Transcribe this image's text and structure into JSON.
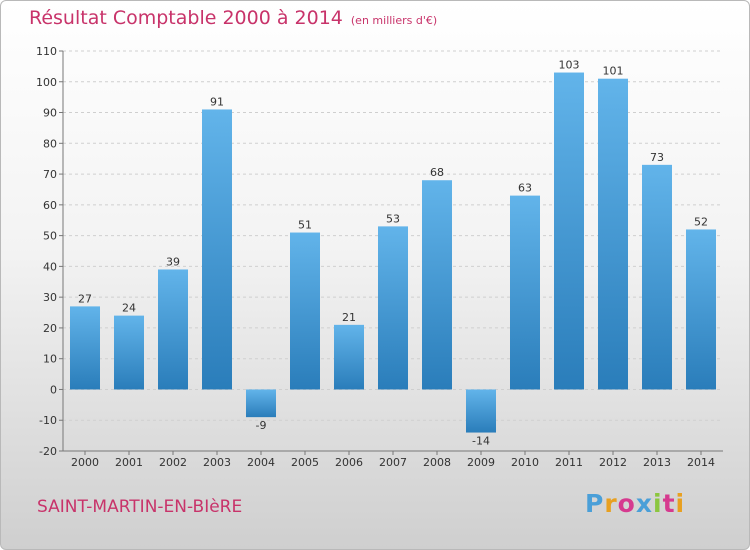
{
  "header": {
    "title": "Résultat Comptable 2000 à 2014",
    "subtitle": "(en milliers d'€)"
  },
  "footer": {
    "city": "SAINT-MARTIN-EN-BIèRE",
    "logo_text": "Proxiti"
  },
  "colors": {
    "title": "#c8336a",
    "bar_light": "#62b4ea",
    "bar_dark": "#2a7dba",
    "grid": "#cfcfcf",
    "logo_letters": [
      "#4a9fd8",
      "#e8a020",
      "#d63a8f",
      "#4a9fd8",
      "#8cc63f",
      "#d63a8f",
      "#e8a020"
    ]
  },
  "chart_data": {
    "type": "bar",
    "title": "Résultat Comptable 2000 à 2014",
    "subtitle": "(en milliers d'€)",
    "xlabel": "",
    "ylabel": "",
    "categories": [
      "2000",
      "2001",
      "2002",
      "2003",
      "2004",
      "2005",
      "2006",
      "2007",
      "2008",
      "2009",
      "2010",
      "2011",
      "2012",
      "2013",
      "2014"
    ],
    "values": [
      27,
      24,
      39,
      91,
      -9,
      51,
      21,
      53,
      68,
      -14,
      63,
      103,
      101,
      73,
      52
    ],
    "ylim": [
      -20,
      110
    ],
    "yticks": [
      -20,
      -10,
      0,
      10,
      20,
      30,
      40,
      50,
      60,
      70,
      80,
      90,
      100,
      110
    ],
    "grid": "horizontal dashed"
  }
}
